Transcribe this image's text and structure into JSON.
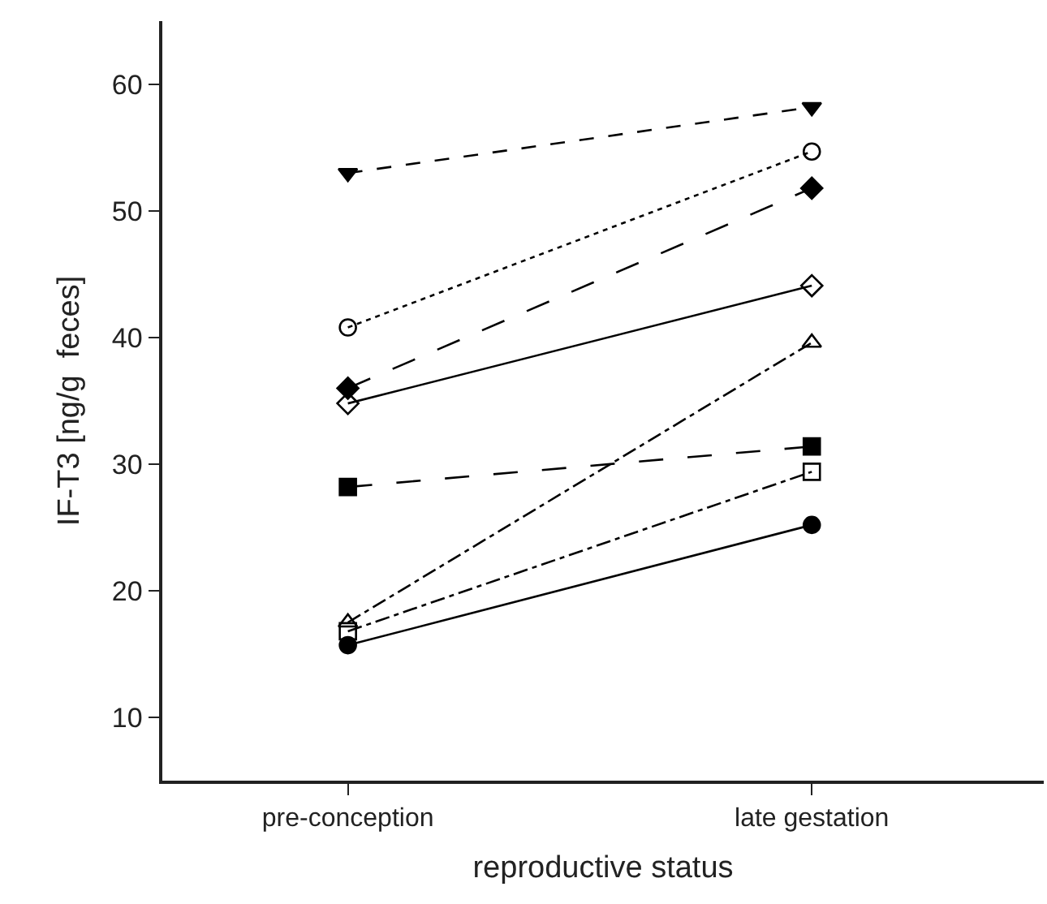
{
  "chart_data": {
    "type": "line",
    "xlabel": "reproductive status",
    "ylabel": "IF-T3 [ng/g  feces]",
    "categories": [
      "pre-conception",
      "late gestation"
    ],
    "series": [
      {
        "color": "#000000",
        "marker": "triangle-down",
        "line_style": "dashed",
        "values": [
          53.0,
          58.2
        ]
      },
      {
        "color": "#000000",
        "marker": "circle-open",
        "line_style": "dotted",
        "values": [
          40.8,
          54.7
        ]
      },
      {
        "color": "#000000",
        "marker": "diamond",
        "line_style": "longdash",
        "values": [
          36.0,
          51.8
        ]
      },
      {
        "color": "#000000",
        "marker": "diamond-open",
        "line_style": "solid",
        "values": [
          34.8,
          44.1
        ]
      },
      {
        "color": "#000000",
        "marker": "triangle-up-open",
        "line_style": "dashdot",
        "values": [
          17.5,
          39.6
        ]
      },
      {
        "color": "#000000",
        "marker": "square",
        "line_style": "longdash",
        "values": [
          28.2,
          31.4
        ]
      },
      {
        "color": "#000000",
        "marker": "square-open",
        "line_style": "dashdot",
        "values": [
          16.8,
          29.4
        ]
      },
      {
        "color": "#000000",
        "marker": "circle",
        "line_style": "solid",
        "values": [
          15.7,
          25.2
        ]
      }
    ],
    "ylim": [
      5,
      65
    ],
    "yticks": [
      10,
      20,
      30,
      40,
      50,
      60
    ]
  }
}
